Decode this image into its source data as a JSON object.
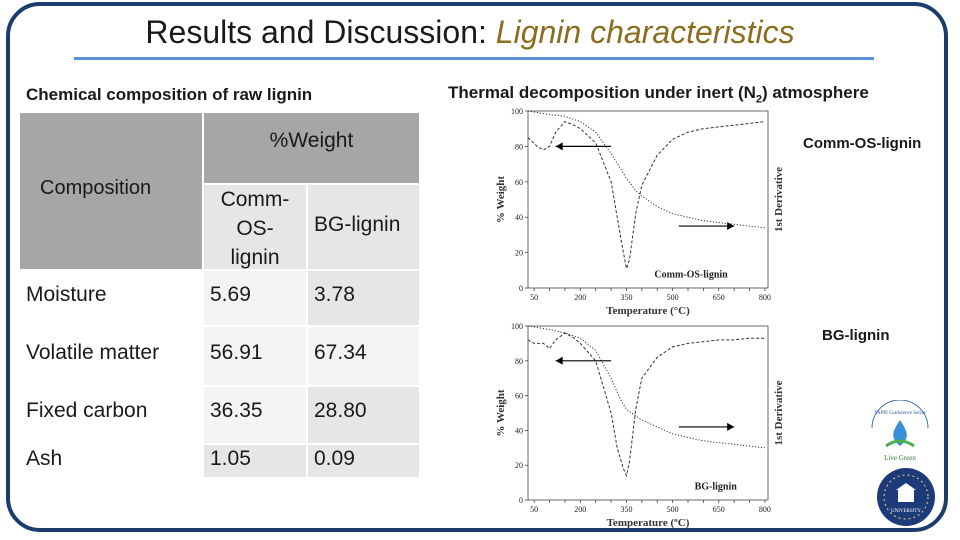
{
  "slide": {
    "title_main": "Results and Discussion: ",
    "title_highlight": "Lignin characteristics",
    "left_heading": "Chemical composition of raw lignin",
    "right_heading_prefix": "Thermal decomposition under inert (N",
    "right_heading_sub": "2",
    "right_heading_suffix": ") atmosphere",
    "label_top_chart": "Comm-OS-lignin",
    "label_bottom_chart": "BG-lignin"
  },
  "table": {
    "weight_header": "%Weight",
    "composition_header": "Composition",
    "col1_header_lines": [
      "Comm-",
      "OS-",
      "lignin"
    ],
    "col2_header": "BG-lignin",
    "rows": [
      {
        "label": "Moisture",
        "comm": "5.69",
        "bg": "3.78"
      },
      {
        "label": "Volatile matter",
        "comm": "56.91",
        "bg": "67.34"
      },
      {
        "label": "Fixed carbon",
        "comm": "36.35",
        "bg": "28.80"
      },
      {
        "label": "Ash",
        "comm": "1.05",
        "bg": "0.09"
      }
    ]
  },
  "chart_data": [
    {
      "type": "line",
      "xlabel": "Temperature (°C)",
      "ylabel": "% Weight",
      "y2label": "1st Derivative",
      "xticks": [
        "50",
        "100",
        "150",
        "200",
        "250",
        "300",
        "350",
        "400",
        "450",
        "500",
        "550",
        "600",
        "650",
        "700",
        "750",
        "800"
      ],
      "yticks": [
        "0",
        "20",
        "40",
        "60",
        "80",
        "100"
      ],
      "xlim": [
        50,
        800
      ],
      "ylim": [
        0,
        100
      ],
      "annotation": "Comm-OS-lignin",
      "series": [
        {
          "style": "dotted",
          "x": [
            30,
            100,
            150,
            200,
            250,
            300,
            350,
            380,
            400,
            450,
            500,
            550,
            600,
            650,
            700,
            750,
            800
          ],
          "y": [
            100,
            98,
            97,
            94,
            88,
            76,
            62,
            55,
            52,
            46,
            42,
            40,
            38,
            37,
            36,
            35,
            34
          ]
        },
        {
          "style": "dashed",
          "x": [
            30,
            60,
            80,
            100,
            120,
            150,
            180,
            200,
            250,
            300,
            320,
            340,
            350,
            360,
            380,
            400,
            450,
            500,
            550,
            600,
            650,
            700,
            750,
            800
          ],
          "y": [
            85,
            80,
            78,
            80,
            88,
            94,
            92,
            90,
            82,
            60,
            40,
            20,
            11,
            16,
            42,
            58,
            75,
            84,
            88,
            90,
            91,
            92,
            93,
            94
          ]
        }
      ]
    },
    {
      "type": "line",
      "xlabel": "Temperature (ºC)",
      "ylabel": "% Weight",
      "y2label": "1st Derivative",
      "xticks": [
        "50",
        "100",
        "150",
        "200",
        "250",
        "300",
        "350",
        "400",
        "450",
        "500",
        "550",
        "600",
        "650",
        "700",
        "750",
        "800"
      ],
      "yticks": [
        "0",
        "20",
        "40",
        "60",
        "80",
        "100"
      ],
      "xlim": [
        50,
        800
      ],
      "ylim": [
        0,
        100
      ],
      "annotation": "BG-lignin",
      "series": [
        {
          "style": "dotted",
          "x": [
            30,
            100,
            150,
            200,
            250,
            300,
            330,
            350,
            400,
            450,
            500,
            550,
            600,
            650,
            700,
            750,
            800
          ],
          "y": [
            100,
            98,
            96,
            93,
            86,
            70,
            58,
            52,
            46,
            42,
            38,
            36,
            34,
            33,
            32,
            31,
            30
          ]
        },
        {
          "style": "dashed",
          "x": [
            30,
            50,
            80,
            100,
            120,
            150,
            180,
            200,
            250,
            300,
            320,
            340,
            350,
            360,
            380,
            400,
            450,
            500,
            550,
            600,
            650,
            700,
            750,
            800
          ],
          "y": [
            92,
            90,
            90,
            87,
            92,
            96,
            93,
            90,
            80,
            50,
            30,
            18,
            14,
            22,
            52,
            70,
            82,
            88,
            90,
            91,
            92,
            92,
            93,
            93
          ]
        }
      ]
    }
  ],
  "logos": {
    "top_logo_text": "Live Green",
    "top_logo_arc": "TAPPI Conference Series",
    "bottom_logo_text": "UNIVERSITY"
  },
  "colors": {
    "frame": "#1a3d6e",
    "title_rule": "#5b8fd6",
    "highlight": "#8a6d1e",
    "table_header": "#a6a6a6"
  }
}
